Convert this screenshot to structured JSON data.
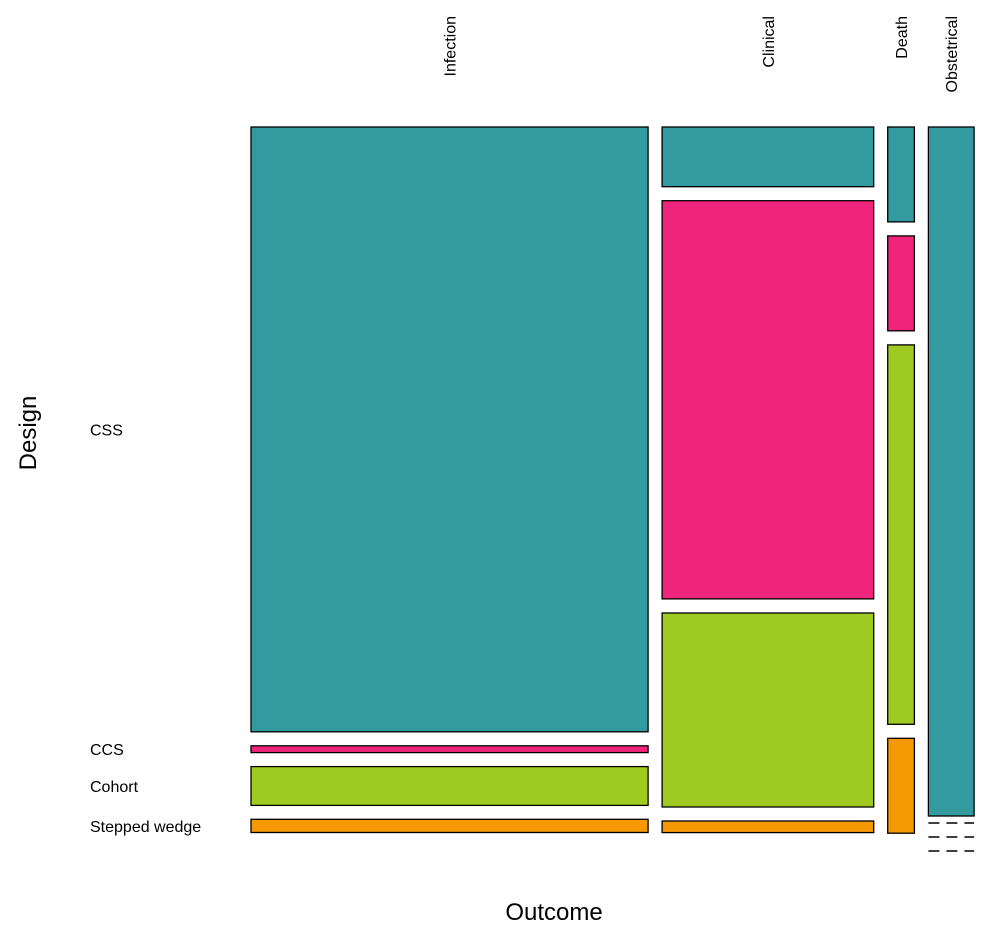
{
  "chart_data": {
    "type": "mosaic",
    "xlabel": "Outcome",
    "ylabel": "Design",
    "x_categories": [
      "Infection",
      "Clinical",
      "Death",
      "Obstetrical"
    ],
    "y_categories": [
      "CSS",
      "CCS",
      "Cohort",
      "Stepped wedge"
    ],
    "colors": {
      "CSS": "#339b9f",
      "CCS": "#ef247a",
      "Cohort": "#9fca22",
      "Stepped wedge": "#f49804"
    },
    "column_proportions": [
      0.5738,
      0.3058,
      0.0386,
      0.066
    ],
    "cells": [
      {
        "x": "Infection",
        "y": "CSS",
        "proportion": 0.8778
      },
      {
        "x": "Infection",
        "y": "CCS",
        "proportion": 0.0098
      },
      {
        "x": "Infection",
        "y": "Cohort",
        "proportion": 0.0563
      },
      {
        "x": "Infection",
        "y": "Stepped wedge",
        "proportion": 0.0191
      },
      {
        "x": "Clinical",
        "y": "CSS",
        "proportion": 0.0867
      },
      {
        "x": "Clinical",
        "y": "CCS",
        "proportion": 0.578
      },
      {
        "x": "Clinical",
        "y": "Cohort",
        "proportion": 0.2816
      },
      {
        "x": "Clinical",
        "y": "Stepped wedge",
        "proportion": 0.0169
      },
      {
        "x": "Death",
        "y": "CSS",
        "proportion": 0.1378
      },
      {
        "x": "Death",
        "y": "CCS",
        "proportion": 0.1378
      },
      {
        "x": "Death",
        "y": "Cohort",
        "proportion": 0.5507
      },
      {
        "x": "Death",
        "y": "Stepped wedge",
        "proportion": 0.1378
      },
      {
        "x": "Obstetrical",
        "y": "CSS",
        "proportion": 1.0
      },
      {
        "x": "Obstetrical",
        "y": "CCS",
        "proportion": 0
      },
      {
        "x": "Obstetrical",
        "y": "Cohort",
        "proportion": 0
      },
      {
        "x": "Obstetrical",
        "y": "Stepped wedge",
        "proportion": 0
      }
    ]
  }
}
